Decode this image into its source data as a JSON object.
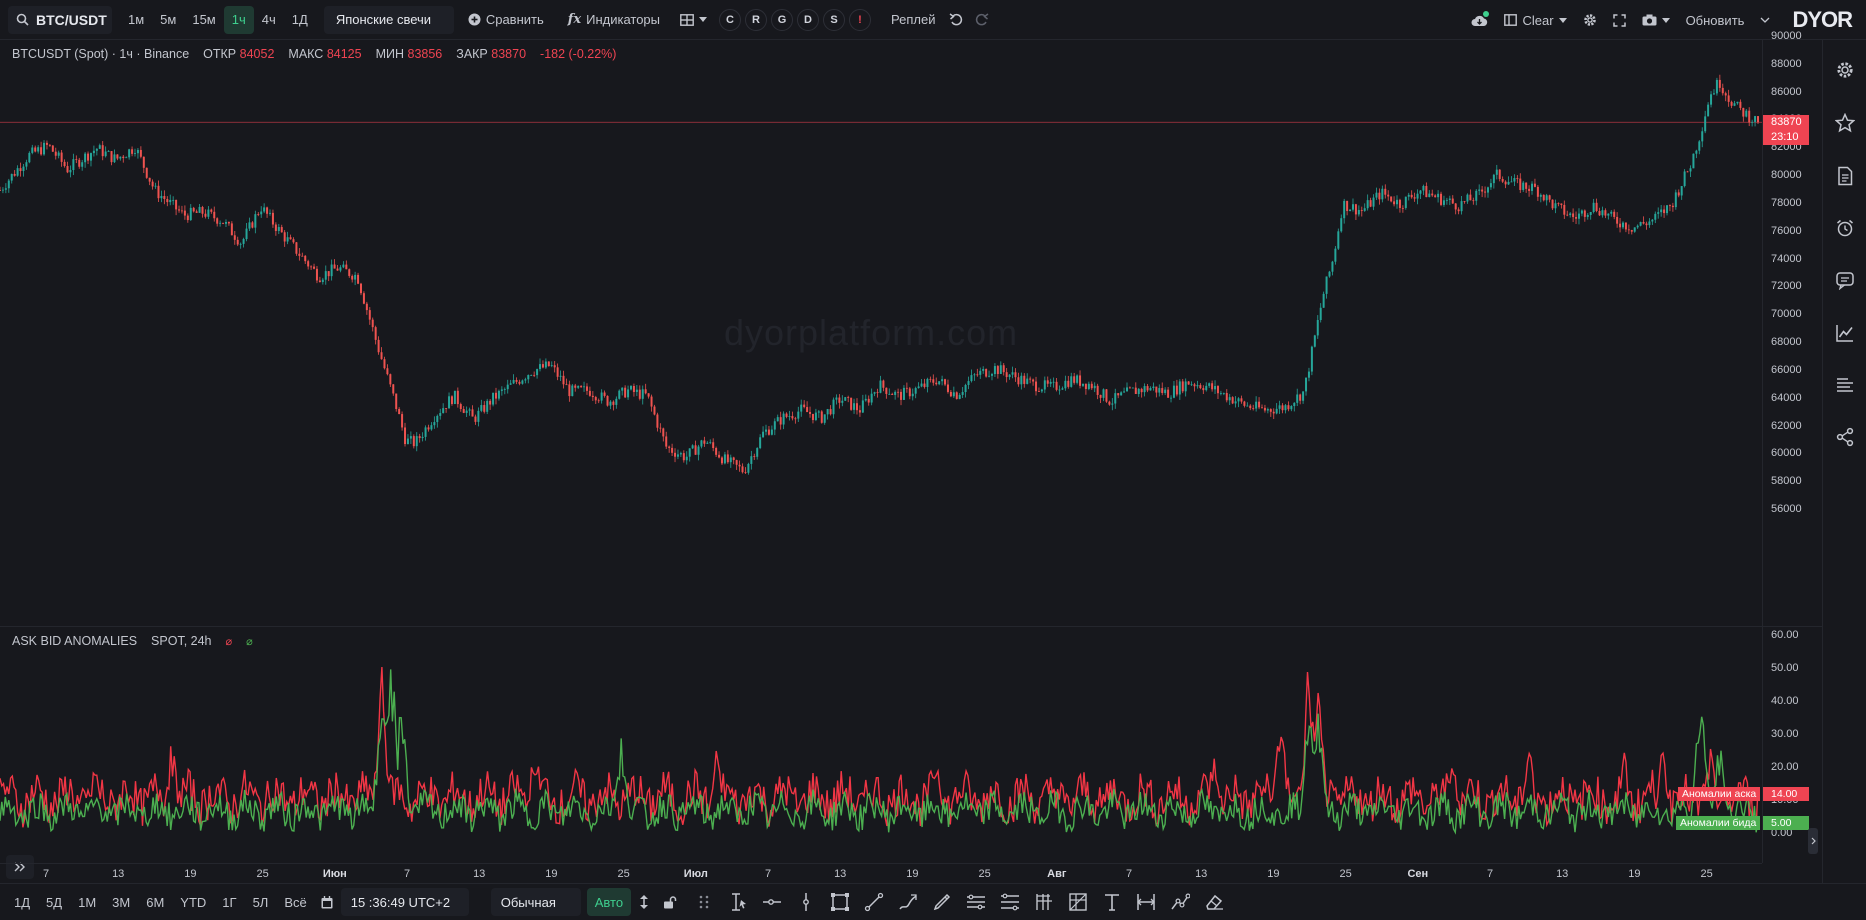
{
  "toolbar": {
    "symbol": "BTC/USDT",
    "timeframes": [
      "1м",
      "5м",
      "15м",
      "1ч",
      "4ч",
      "1Д"
    ],
    "active_timeframe": "1ч",
    "chart_type": "Японские свечи",
    "compare": "Сравнить",
    "indicators": "Индикаторы",
    "letters": [
      "C",
      "R",
      "G",
      "D",
      "S",
      "!"
    ],
    "replay": "Реплей",
    "layout_name": "Clear",
    "refresh": "Обновить",
    "logo": "DYOR"
  },
  "chart": {
    "legend": {
      "title": "BTCUSDT (Spot) · 1ч · Binance",
      "open_label": "ОТКР",
      "open": "84052",
      "high_label": "МАКС",
      "high": "84125",
      "low_label": "МИН",
      "low": "83856",
      "close_label": "ЗАКР",
      "close": "83870",
      "change": "-182 (-0.22%)"
    },
    "watermark": "dyorplatform.com",
    "last_price": "83870",
    "countdown": "23:10"
  },
  "indicator": {
    "title": "ASK BID ANOMALIES",
    "params": "SPOT, 24h",
    "ask_symbol": "⌀",
    "bid_symbol": "⌀",
    "ask_label": "Аномалии аска",
    "ask_value": "14.00",
    "bid_label": "Аномалии бида",
    "bid_value": "5.00"
  },
  "bottom": {
    "ranges": [
      "1Д",
      "5Д",
      "1М",
      "3М",
      "6М",
      "YTD",
      "1Г",
      "5Л",
      "Всё"
    ],
    "time": "15 :36:49 UTC+2",
    "scale_mode": "Обычная",
    "auto": "Авто"
  },
  "colors": {
    "up": "#26a69a",
    "down": "#ef5350",
    "ask": "#f23645",
    "bid": "#4caf50",
    "accent": "#3ecf8e"
  },
  "chart_data": [
    {
      "type": "candlestick",
      "title": "BTCUSDT (Spot) · 1ч · Binance",
      "ylim": [
        56000,
        90000
      ],
      "yticks": [
        90000,
        88000,
        86000,
        84000,
        82000,
        80000,
        78000,
        76000,
        74000,
        72000,
        70000,
        68000,
        66000,
        64000,
        62000,
        60000,
        58000,
        56000
      ],
      "x_ticks": [
        "7",
        "13",
        "19",
        "25",
        "Июн",
        "7",
        "13",
        "19",
        "25",
        "Июл",
        "7",
        "13",
        "19",
        "25",
        "Авг",
        "7",
        "13",
        "19",
        "25",
        "Сен",
        "7",
        "13",
        "19",
        "25"
      ],
      "last": 83870,
      "path_points": [
        [
          0,
          79000
        ],
        [
          3,
          81500
        ],
        [
          5,
          82200
        ],
        [
          7,
          80500
        ],
        [
          10,
          82000
        ],
        [
          12,
          81200
        ],
        [
          14,
          82100
        ],
        [
          16,
          79000
        ],
        [
          19,
          77200
        ],
        [
          21,
          77400
        ],
        [
          23,
          76800
        ],
        [
          25,
          75200
        ],
        [
          27,
          77800
        ],
        [
          29,
          76000
        ],
        [
          31,
          74400
        ],
        [
          33,
          72800
        ],
        [
          35,
          73400
        ],
        [
          37,
          72800
        ],
        [
          39,
          68000
        ],
        [
          41,
          63500
        ],
        [
          42,
          61000
        ],
        [
          43,
          60800
        ],
        [
          45,
          62800
        ],
        [
          47,
          64200
        ],
        [
          49,
          62500
        ],
        [
          51,
          64000
        ],
        [
          53,
          65000
        ],
        [
          55,
          66000
        ],
        [
          57,
          66400
        ],
        [
          59,
          64500
        ],
        [
          61,
          64600
        ],
        [
          63,
          63800
        ],
        [
          65,
          64600
        ],
        [
          67,
          64200
        ],
        [
          69,
          60500
        ],
        [
          71,
          59800
        ],
        [
          73,
          61000
        ],
        [
          75,
          59600
        ],
        [
          77,
          58800
        ],
        [
          79,
          61500
        ],
        [
          81,
          62600
        ],
        [
          83,
          63200
        ],
        [
          85,
          62600
        ],
        [
          87,
          64000
        ],
        [
          89,
          63200
        ],
        [
          91,
          65000
        ],
        [
          93,
          64200
        ],
        [
          95,
          64700
        ],
        [
          97,
          65400
        ],
        [
          99,
          64300
        ],
        [
          101,
          65700
        ],
        [
          103,
          66200
        ],
        [
          105,
          65600
        ],
        [
          107,
          65000
        ],
        [
          109,
          64800
        ],
        [
          111,
          65400
        ],
        [
          113,
          65000
        ],
        [
          115,
          63800
        ],
        [
          117,
          64500
        ],
        [
          119,
          64800
        ],
        [
          121,
          64400
        ],
        [
          123,
          65200
        ],
        [
          125,
          64900
        ],
        [
          127,
          64200
        ],
        [
          129,
          63500
        ],
        [
          131,
          63200
        ],
        [
          133,
          63400
        ],
        [
          135,
          64500
        ],
        [
          136,
          68000
        ],
        [
          137,
          71500
        ],
        [
          138,
          74000
        ],
        [
          139,
          78000
        ],
        [
          141,
          77500
        ],
        [
          143,
          78800
        ],
        [
          145,
          78000
        ],
        [
          147,
          79000
        ],
        [
          149,
          78400
        ],
        [
          151,
          77900
        ],
        [
          153,
          78600
        ],
        [
          155,
          80100
        ],
        [
          157,
          79400
        ],
        [
          159,
          79100
        ],
        [
          161,
          77800
        ],
        [
          163,
          77000
        ],
        [
          165,
          77900
        ],
        [
          167,
          76900
        ],
        [
          169,
          76300
        ],
        [
          171,
          76800
        ],
        [
          173,
          77900
        ],
        [
          175,
          80800
        ],
        [
          176,
          83000
        ],
        [
          177,
          85800
        ],
        [
          178,
          86800
        ],
        [
          179,
          85600
        ],
        [
          180,
          84800
        ],
        [
          182,
          83870
        ]
      ]
    },
    {
      "type": "line",
      "title": "ASK BID ANOMALIES",
      "ylim": [
        0,
        60
      ],
      "yticks": [
        60,
        50,
        40,
        30,
        20,
        10,
        0
      ],
      "series": [
        {
          "name": "Аномалии аска",
          "last": 14.0
        },
        {
          "name": "Аномалии бида",
          "last": 5.0
        }
      ],
      "spikes": {
        "ask": [
          [
            10,
            22
          ],
          [
            18,
            30
          ],
          [
            40,
            52
          ],
          [
            56,
            30
          ],
          [
            75,
            27
          ],
          [
            98,
            26
          ],
          [
            127,
            26
          ],
          [
            134,
            40
          ],
          [
            137,
            58
          ],
          [
            138,
            46
          ],
          [
            152,
            29
          ],
          [
            160,
            30
          ],
          [
            170,
            26
          ],
          [
            174,
            29
          ],
          [
            179,
            28
          ]
        ],
        "bid": [
          [
            40,
            48
          ],
          [
            41,
            58
          ],
          [
            42,
            45
          ],
          [
            65,
            31
          ],
          [
            137,
            40
          ],
          [
            138,
            42
          ],
          [
            178,
            48
          ],
          [
            180,
            30
          ]
        ]
      }
    }
  ]
}
